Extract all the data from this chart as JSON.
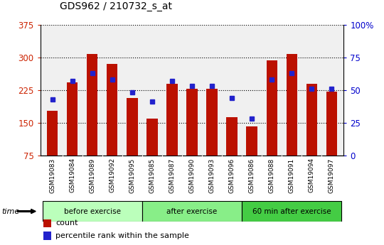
{
  "title": "GDS962 / 210732_s_at",
  "samples": [
    "GSM19083",
    "GSM19084",
    "GSM19089",
    "GSM19092",
    "GSM19095",
    "GSM19085",
    "GSM19087",
    "GSM19090",
    "GSM19093",
    "GSM19096",
    "GSM19086",
    "GSM19088",
    "GSM19091",
    "GSM19094",
    "GSM19097"
  ],
  "counts": [
    178,
    243,
    307,
    284,
    207,
    160,
    240,
    228,
    228,
    163,
    142,
    293,
    308,
    240,
    222
  ],
  "percentile_ranks": [
    43,
    57,
    63,
    58,
    48,
    41,
    57,
    53,
    53,
    44,
    28,
    58,
    63,
    51,
    51
  ],
  "groups": [
    {
      "label": "before exercise",
      "start": 0,
      "end": 5,
      "color": "#bbffbb"
    },
    {
      "label": "after exercise",
      "start": 5,
      "end": 10,
      "color": "#88ee88"
    },
    {
      "label": "60 min after exercise",
      "start": 10,
      "end": 15,
      "color": "#44cc44"
    }
  ],
  "y_min": 75,
  "y_max": 375,
  "y_ticks": [
    75,
    150,
    225,
    300,
    375
  ],
  "y_ticks_right": [
    0,
    25,
    50,
    75,
    100
  ],
  "bar_color": "#bb1100",
  "dot_color": "#2222cc",
  "bar_width": 0.55,
  "plot_bg_color": "#f0f0f0",
  "tick_label_color_left": "#cc2200",
  "tick_label_color_right": "#0000cc",
  "legend_count": "count",
  "legend_percentile": "percentile rank within the sample",
  "percentile_scale_max": 100,
  "percentile_scale_min": 0,
  "tick_bg_color": "#c8c8c8",
  "group_colors": [
    "#bbffbb",
    "#88ee88",
    "#44cc44"
  ]
}
